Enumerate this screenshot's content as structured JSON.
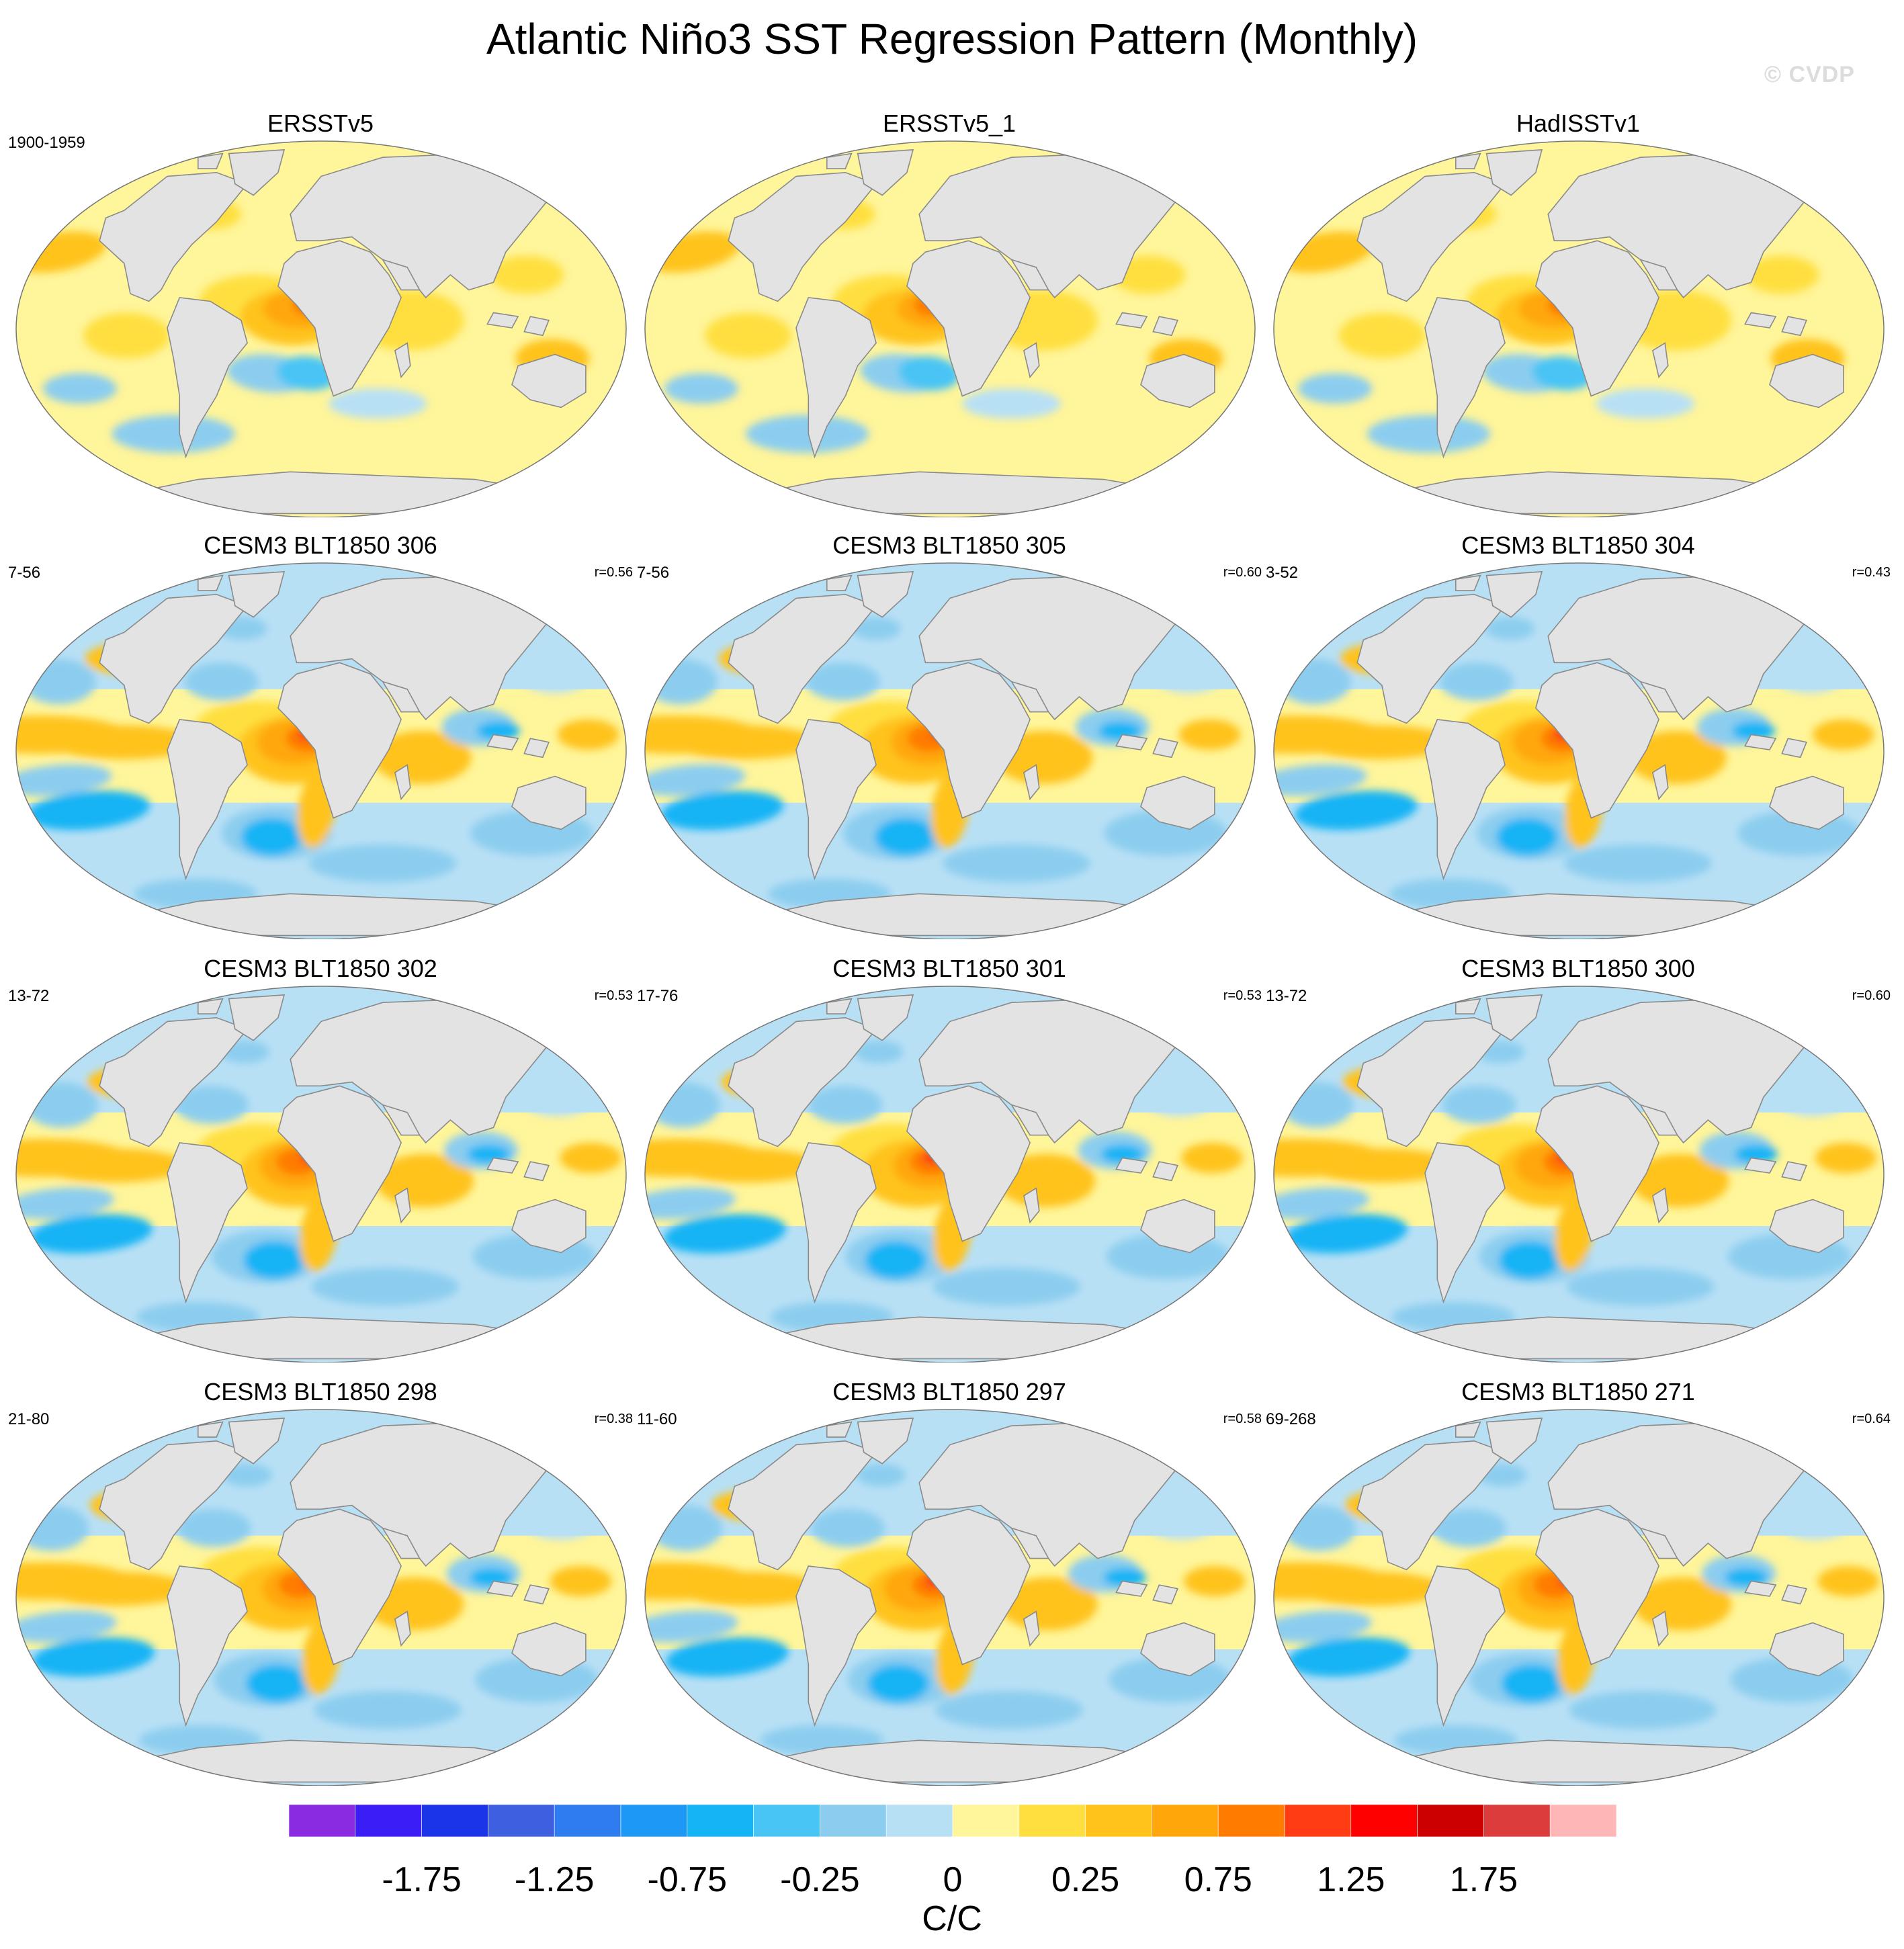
{
  "figure": {
    "title": "Atlantic Niño3 SST Regression Pattern (Monthly)",
    "watermark": "© CVDP"
  },
  "panels": [
    {
      "title": "ERSSTv5",
      "years": "1900-1959",
      "corr": "",
      "pattern": "obs"
    },
    {
      "title": "ERSSTv5_1",
      "years": "",
      "corr": "",
      "pattern": "obs"
    },
    {
      "title": "HadISSTv1",
      "years": "",
      "corr": "",
      "pattern": "obs"
    },
    {
      "title": "CESM3 BLT1850 306",
      "years": "7-56",
      "corr": "r=0.56",
      "pattern": "model"
    },
    {
      "title": "CESM3 BLT1850 305",
      "years": "7-56",
      "corr": "r=0.60",
      "pattern": "model"
    },
    {
      "title": "CESM3 BLT1850 304",
      "years": "3-52",
      "corr": "r=0.43",
      "pattern": "model"
    },
    {
      "title": "CESM3 BLT1850 302",
      "years": "13-72",
      "corr": "r=0.53",
      "pattern": "model"
    },
    {
      "title": "CESM3 BLT1850 301",
      "years": "17-76",
      "corr": "r=0.53",
      "pattern": "model"
    },
    {
      "title": "CESM3 BLT1850 300",
      "years": "13-72",
      "corr": "r=0.60",
      "pattern": "model"
    },
    {
      "title": "CESM3 BLT1850 298",
      "years": "21-80",
      "corr": "r=0.38",
      "pattern": "model"
    },
    {
      "title": "CESM3 BLT1850 297",
      "years": "11-60",
      "corr": "r=0.58",
      "pattern": "model"
    },
    {
      "title": "CESM3 BLT1850 271",
      "years": "69-268",
      "corr": "r=0.64",
      "pattern": "model"
    }
  ],
  "colorbar": {
    "units": "C/C",
    "levels": [
      -2,
      -1.75,
      -1.5,
      -1.25,
      -1,
      -0.75,
      -0.5,
      -0.25,
      -0.1,
      0,
      0.1,
      0.25,
      0.5,
      0.75,
      1,
      1.25,
      1.5,
      1.75,
      2
    ],
    "colors": [
      "#8a2be2",
      "#3b1ef5",
      "#1c34e8",
      "#3d5fe0",
      "#2f7cf0",
      "#1e98f5",
      "#14b4f5",
      "#48c4f5",
      "#8ccdef",
      "#b8e0f5",
      "#fff59a",
      "#ffdf3f",
      "#ffc31a",
      "#ffa70a",
      "#ff7c00",
      "#ff3c14",
      "#ff0000",
      "#cc0000",
      "#dc3c3c",
      "#ffb6b6"
    ],
    "tick_labels": [
      "-1.75",
      "-1.25",
      "-0.75",
      "-0.25",
      "0",
      "0.25",
      "0.75",
      "1.25",
      "1.75"
    ],
    "tick_level_values": [
      -1.75,
      -1.25,
      -0.75,
      -0.25,
      0,
      0.25,
      0.75,
      1.25,
      1.75
    ]
  },
  "map_colors": {
    "land": "#e3e3e3",
    "land_stroke": "#8a8a8a",
    "neutral_ocean": "#fff59a",
    "outline": "#777777"
  }
}
